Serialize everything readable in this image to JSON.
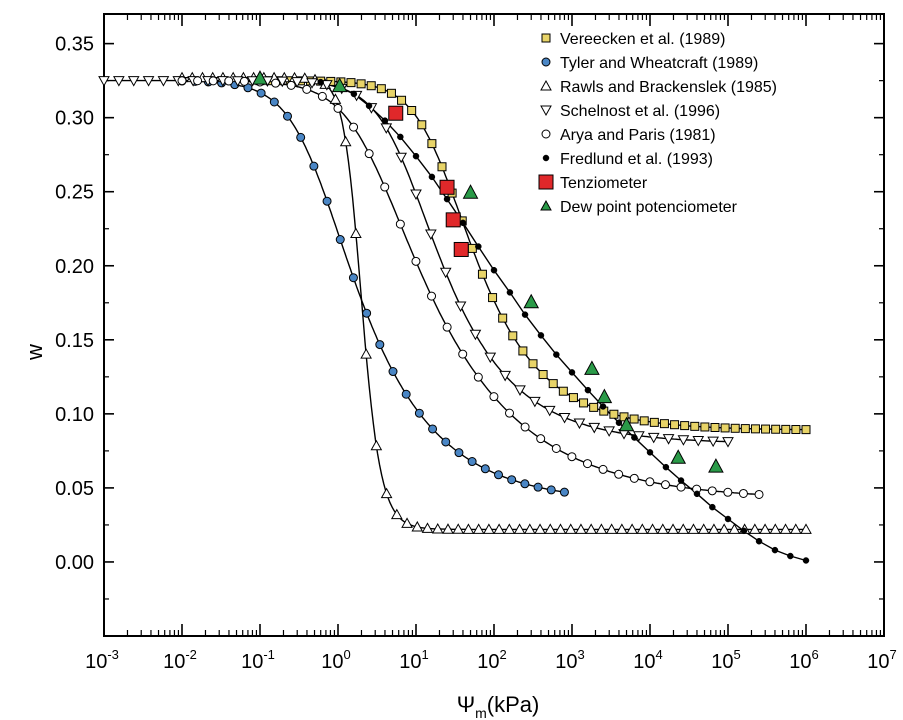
{
  "chart_data": {
    "type": "scatter",
    "xlabel": "Ψ",
    "xlabel_sub": "m",
    "xlabel_unit": "(kPa)",
    "ylabel": "w",
    "x_scale": "log",
    "xlim": [
      0.001,
      10000000
    ],
    "ylim": [
      -0.05,
      0.37
    ],
    "grid": false,
    "legend_placement": "top-right",
    "x_ticks": [
      0.001,
      0.01,
      0.1,
      1,
      10,
      100,
      1000,
      10000,
      100000,
      1000000,
      10000000
    ],
    "x_tick_labels": [
      {
        "base": "10",
        "exp": "-3"
      },
      {
        "base": "10",
        "exp": "-2"
      },
      {
        "base": "10",
        "exp": "-1"
      },
      {
        "base": "10",
        "exp": "0"
      },
      {
        "base": "10",
        "exp": "1"
      },
      {
        "base": "10",
        "exp": "2"
      },
      {
        "base": "10",
        "exp": "3"
      },
      {
        "base": "10",
        "exp": "4"
      },
      {
        "base": "10",
        "exp": "5"
      },
      {
        "base": "10",
        "exp": "6"
      },
      {
        "base": "10",
        "exp": "7"
      }
    ],
    "y_ticks": [
      0.0,
      0.05,
      0.1,
      0.15,
      0.2,
      0.25,
      0.3,
      0.35
    ],
    "y_tick_labels": [
      "0.00",
      "0.05",
      "0.10",
      "0.15",
      "0.20",
      "0.25",
      "0.30",
      "0.35"
    ],
    "series": [
      {
        "name": "Vereecken et al. (1989)",
        "marker": "square",
        "fill": "#e8d468",
        "curve_params": {
          "theta_r": 0.089,
          "theta_s": 0.325,
          "alpha": 0.05,
          "n": 1.6
        },
        "x_range": [
          0.1,
          1000000
        ],
        "points": 55
      },
      {
        "name": "Tyler and Wheatcraft (1989)",
        "marker": "circle",
        "fill": "#4a86c5",
        "curve_params": {
          "theta_r": 0.04,
          "theta_s": 0.325,
          "alpha": 2.0,
          "n": 1.5
        },
        "x_range": [
          0.01,
          800
        ],
        "points": 30
      },
      {
        "name": "Rawls and Brackenslek (1985)",
        "marker": "triangle-up",
        "fill": "#ffffff",
        "curve_params": {
          "theta_r": 0.022,
          "theta_s": 0.327,
          "alpha": 0.55,
          "n": 4.0
        },
        "x_range": [
          0.01,
          1000000
        ],
        "points": 62
      },
      {
        "name": "Schelnost et al. (1996)",
        "marker": "triangle-down",
        "fill": "#ffffff",
        "curve_params": {
          "theta_r": 0.08,
          "theta_s": 0.325,
          "alpha": 0.15,
          "n": 1.55
        },
        "x_range": [
          0.001,
          100000
        ],
        "points": 43
      },
      {
        "name": "Arya and Paris (1981)",
        "marker": "circle",
        "fill": "#ffffff",
        "curve_params": {
          "theta_r": 0.042,
          "theta_s": 0.325,
          "alpha": 0.4,
          "n": 1.38
        },
        "x_range": [
          0.01,
          250000
        ],
        "points": 38
      },
      {
        "name": "Fredlund et al. (1993)",
        "marker": "dot",
        "fill": "#000000",
        "x": [
          0.6,
          1,
          1.6,
          2.5,
          4,
          6.3,
          10,
          16,
          25,
          40,
          63,
          100,
          160,
          250,
          400,
          630,
          1000,
          1600,
          2500,
          4000,
          6300,
          10000,
          16000,
          25000,
          40000,
          63000,
          100000,
          160000,
          250000,
          400000,
          630000,
          1000000
        ],
        "y": [
          0.324,
          0.321,
          0.316,
          0.308,
          0.298,
          0.287,
          0.274,
          0.26,
          0.245,
          0.229,
          0.213,
          0.197,
          0.182,
          0.167,
          0.153,
          0.14,
          0.128,
          0.116,
          0.105,
          0.094,
          0.084,
          0.074,
          0.064,
          0.055,
          0.046,
          0.037,
          0.029,
          0.021,
          0.014,
          0.008,
          0.004,
          0.001
        ]
      },
      {
        "name": "Tenziometer",
        "marker": "big-square",
        "fill": "#e0282a",
        "x": [
          5.5,
          25,
          30,
          38
        ],
        "y": [
          0.303,
          0.253,
          0.231,
          0.211
        ]
      },
      {
        "name": "Dew point potenciometer",
        "marker": "big-triangle",
        "fill": "#2a9a48",
        "x": [
          0.1,
          1.05,
          50,
          300,
          1800,
          2600,
          5000,
          23000,
          70000
        ],
        "y": [
          0.326,
          0.321,
          0.249,
          0.175,
          0.13,
          0.111,
          0.092,
          0.07,
          0.064
        ]
      }
    ]
  }
}
